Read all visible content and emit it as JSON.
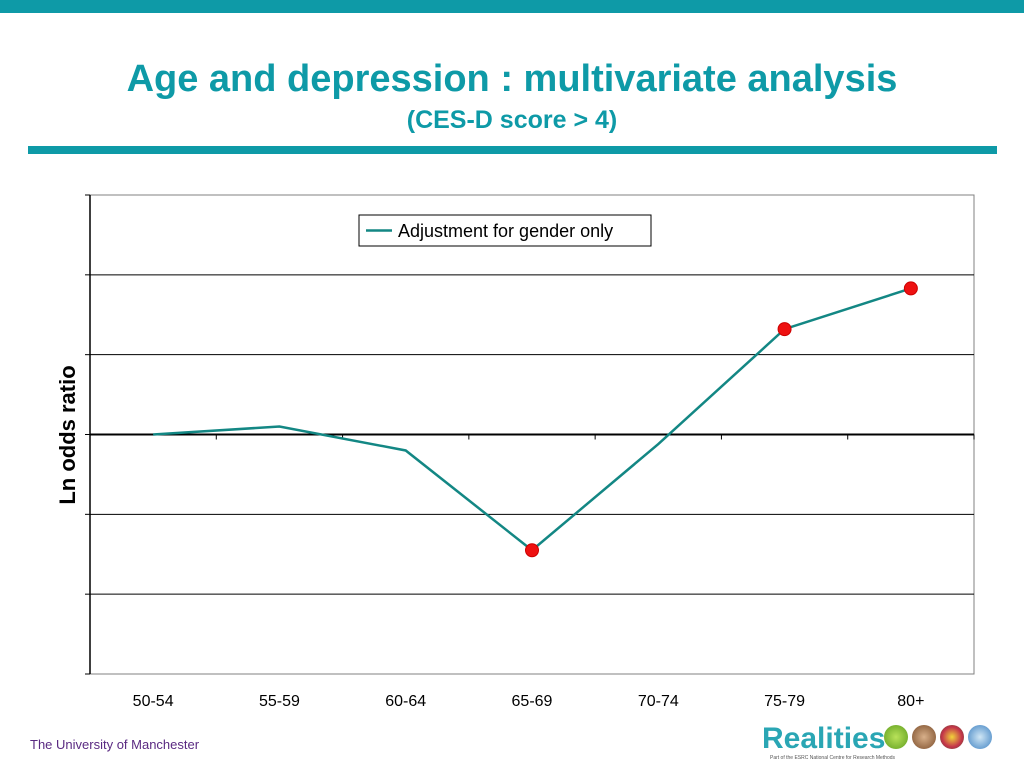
{
  "slide": {
    "title": "Age and depression : multivariate analysis",
    "subtitle": "(CES-D score > 4)",
    "footer": "The University of Manchester",
    "logo_text": "Realities",
    "logo_tagline": "Part of the ESRC National Centre for Research Methods"
  },
  "colors": {
    "accent": "#0e9aa7",
    "line": "#138784",
    "marker": "#ee1111"
  },
  "chart_data": {
    "type": "line",
    "title": "",
    "xlabel": "",
    "ylabel": "Ln odds ratio",
    "categories": [
      "50-54",
      "55-59",
      "60-64",
      "65-69",
      "70-74",
      "75-79",
      "80+"
    ],
    "ylim": [
      -3,
      3
    ],
    "grid": true,
    "legend": "top-center",
    "series": [
      {
        "name": "Adjustment for gender only",
        "values": [
          0.0,
          0.1,
          -0.2,
          -1.45,
          -0.12,
          1.32,
          1.83
        ],
        "highlighted": [
          false,
          false,
          false,
          true,
          false,
          true,
          true
        ]
      }
    ]
  }
}
